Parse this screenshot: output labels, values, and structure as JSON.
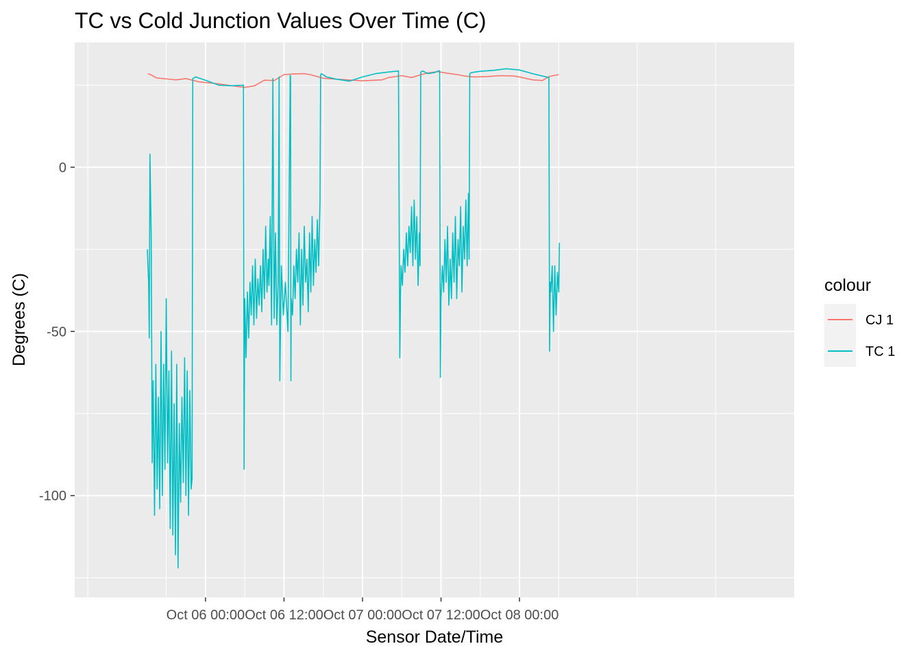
{
  "chart_data": {
    "type": "line",
    "title": "TC vs Cold Junction Values Over Time (C)",
    "xlabel": "Sensor Date/Time",
    "ylabel": "Degrees (C)",
    "x_axis": {
      "unit": "hours from Oct 06 00:00",
      "range": [
        -20,
        90
      ],
      "ticks": [
        {
          "value": 0,
          "label": "Oct 06 00:00"
        },
        {
          "value": 12,
          "label": "Oct 06 12:00"
        },
        {
          "value": 24,
          "label": "Oct 07 00:00"
        },
        {
          "value": 36,
          "label": "Oct 07 12:00"
        },
        {
          "value": 48,
          "label": "Oct 08 00:00"
        }
      ]
    },
    "y_axis": {
      "range": [
        -131,
        38
      ],
      "ticks": [
        {
          "value": 0,
          "label": "0"
        },
        {
          "value": -50,
          "label": "-50"
        },
        {
          "value": -100,
          "label": "-100"
        }
      ]
    },
    "grid": true,
    "legend": {
      "title": "colour",
      "position": "right",
      "entries": [
        {
          "name": "CJ 1",
          "color": "#F8766D"
        },
        {
          "name": "TC 1",
          "color": "#00BFC4"
        }
      ]
    },
    "series": [
      {
        "name": "CJ 1",
        "color": "#F8766D",
        "x": [
          -8.8,
          -8.2,
          -7.5,
          -6.5,
          -4.5,
          -3,
          -1,
          2,
          4,
          6,
          7.5,
          9,
          10.5,
          12,
          13.5,
          15,
          16,
          18,
          20,
          24,
          27,
          28,
          30,
          31.5,
          33,
          34,
          35.5,
          37,
          38.5,
          39.5,
          41,
          43,
          45,
          47,
          48,
          50,
          51.5,
          52.5,
          54
        ],
        "values": [
          28.5,
          28,
          27.2,
          27,
          26.6,
          27,
          26,
          25.4,
          24.8,
          24.3,
          24.8,
          26.5,
          26.4,
          28.2,
          28.4,
          28.5,
          28.2,
          27.1,
          26.8,
          26.3,
          26.6,
          27.3,
          27.9,
          27.3,
          28.2,
          28.7,
          29.1,
          28.6,
          28.2,
          27.8,
          27.5,
          27.6,
          27.9,
          27.8,
          27.5,
          26.6,
          26.4,
          27.6,
          28.2
        ]
      },
      {
        "name": "TC 1",
        "color": "#00BFC4",
        "x": [
          -8.9,
          -8.7,
          -8.6,
          -8.5,
          -8.3,
          -8.15,
          -8.0,
          -7.8,
          -7.6,
          -7.4,
          -7.2,
          -7.0,
          -6.8,
          -6.6,
          -6.4,
          -6.2,
          -6.0,
          -5.8,
          -5.6,
          -5.4,
          -5.2,
          -5.0,
          -4.8,
          -4.6,
          -4.4,
          -4.2,
          -4.0,
          -3.8,
          -3.6,
          -3.4,
          -3.2,
          -3.0,
          -2.8,
          -2.6,
          -2.4,
          -2.2,
          -2.05,
          -1.95,
          -1.5,
          0,
          2,
          4,
          5.8,
          5.9,
          6.0,
          6.2,
          6.4,
          6.6,
          6.8,
          7.0,
          7.2,
          7.4,
          7.6,
          7.8,
          8.0,
          8.2,
          8.4,
          8.6,
          8.8,
          9.0,
          9.2,
          9.4,
          9.6,
          9.7,
          9.9,
          10.1,
          10.3,
          10.5,
          10.7,
          10.9,
          11.1,
          11.25,
          11.35,
          11.6,
          11.9,
          12.2,
          12.6,
          12.95,
          13.0,
          13.05,
          13.1,
          13.3,
          13.5,
          13.7,
          13.9,
          14.1,
          14.3,
          14.5,
          14.7,
          14.9,
          15.1,
          15.3,
          15.5,
          15.7,
          15.9,
          16.1,
          16.3,
          16.5,
          16.7,
          16.9,
          17.1,
          17.3,
          17.5,
          17.6,
          17.7,
          18.5,
          20,
          22,
          24,
          26,
          28,
          29.5,
          29.7,
          29.8,
          29.9,
          30.1,
          30.3,
          30.5,
          30.7,
          30.9,
          31.1,
          31.3,
          31.5,
          31.7,
          31.9,
          32.1,
          32.3,
          32.5,
          32.7,
          32.8,
          32.9,
          33.2,
          34,
          35,
          35.7,
          35.8,
          35.9,
          36.0,
          36.2,
          36.4,
          36.6,
          36.8,
          37.0,
          37.2,
          37.4,
          37.6,
          37.8,
          38.0,
          38.2,
          38.4,
          38.6,
          38.8,
          39.0,
          39.2,
          39.4,
          39.6,
          39.8,
          40.0,
          40.2,
          40.3,
          40.4,
          40.6,
          42,
          44,
          46,
          48,
          50,
          52.5,
          52.6,
          52.7,
          52.8,
          53.0,
          53.2,
          53.4,
          53.6,
          53.8,
          54.0,
          54.1
        ],
        "values": [
          -25,
          -35,
          -52,
          4,
          -22,
          -90,
          -65,
          -106,
          -60,
          -98,
          -70,
          -104,
          -50,
          -100,
          -60,
          -92,
          -40,
          -90,
          -62,
          -110,
          -56,
          -112,
          -72,
          -118,
          -60,
          -122,
          -78,
          -102,
          -70,
          -96,
          -58,
          -100,
          -62,
          -106,
          -68,
          -98,
          -95,
          27,
          27.5,
          26.5,
          25,
          24.8,
          25,
          -92,
          -40,
          -58,
          -38,
          -52,
          -35,
          -45,
          -30,
          -48,
          -28,
          -46,
          -34,
          -42,
          -30,
          -44,
          -25,
          -40,
          -18,
          -38,
          -28,
          -36,
          -15,
          -48,
          27,
          -46,
          -20,
          -48,
          -35,
          27.5,
          -65,
          -30,
          -45,
          -35,
          -50,
          28,
          27.5,
          -65,
          -40,
          -45,
          -30,
          -40,
          -25,
          -35,
          -20,
          -48,
          -25,
          -42,
          -18,
          -35,
          -28,
          -44,
          -20,
          -38,
          -15,
          -36,
          -22,
          -32,
          -16,
          -30,
          -10,
          28,
          28.5,
          27.5,
          26.8,
          26.2,
          27.5,
          28.5,
          29,
          29.3,
          -58,
          -40,
          -30,
          -36,
          -25,
          -32,
          -20,
          -30,
          -18,
          -26,
          -12,
          -30,
          -10,
          -28,
          -15,
          -36,
          -20,
          -30,
          29,
          29.3,
          28.5,
          28.8,
          29.4,
          29.3,
          -64,
          -40,
          -30,
          -38,
          -22,
          -35,
          -18,
          -42,
          -28,
          -40,
          -20,
          -35,
          -15,
          -40,
          -22,
          -30,
          -12,
          -38,
          -18,
          -28,
          -10,
          -30,
          -8,
          -28,
          28.5,
          28.8,
          29.2,
          29.5,
          30,
          29.6,
          28.5,
          27.3,
          -56,
          -35,
          -38,
          -30,
          -50,
          -30,
          -45,
          -32,
          -38,
          -23
        ]
      }
    ]
  }
}
